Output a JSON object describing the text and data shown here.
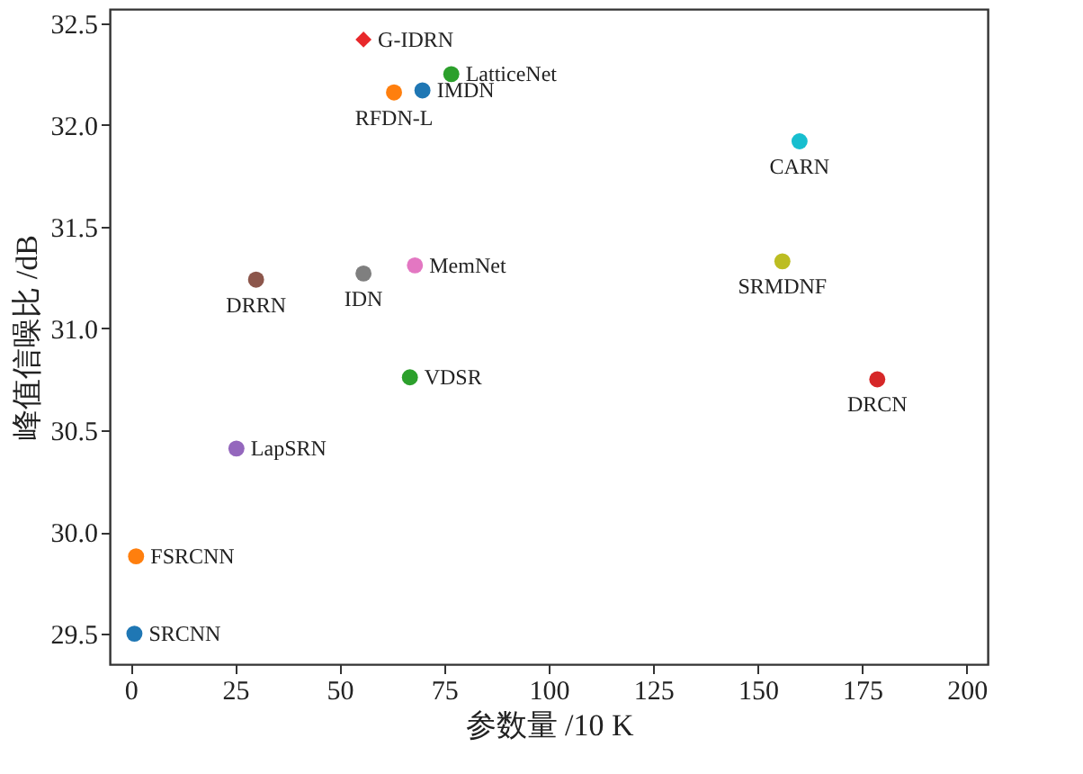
{
  "chart_data": {
    "type": "scatter",
    "xlabel": "参数量 /10 K",
    "ylabel": "峰值信噪比 /dB",
    "xlim": [
      -5,
      205
    ],
    "ylim": [
      29.35,
      32.57
    ],
    "xticks": [
      0,
      25,
      50,
      75,
      100,
      125,
      150,
      175,
      200
    ],
    "yticks": [
      29.5,
      {
        "value": 30,
        "label": "30.0"
      },
      30.5,
      {
        "value": 31,
        "label": "31.0"
      },
      31.5,
      {
        "value": 32,
        "label": "32.0"
      },
      32.5
    ],
    "grid": false,
    "marker": "circle",
    "series": [
      {
        "name": "SRCNN",
        "color": "#1f77b4",
        "x": [
          0.9
        ],
        "values": [
          29.5
        ]
      },
      {
        "name": "FSRCNN",
        "color": "#ff7f0e",
        "x": [
          1.3
        ],
        "values": [
          29.88
        ]
      },
      {
        "name": "VDSR",
        "color": "#2ca02c",
        "x": [
          66.8
        ],
        "values": [
          30.76
        ]
      },
      {
        "name": "DRCN",
        "color": "#d62728",
        "x": [
          178.6
        ],
        "values": [
          30.75
        ]
      },
      {
        "name": "LapSRN",
        "color": "#9467bd",
        "x": [
          25.3
        ],
        "values": [
          30.41
        ]
      },
      {
        "name": "DRRN",
        "color": "#8c564b",
        "x": [
          30
        ],
        "values": [
          31.24
        ]
      },
      {
        "name": "MemNet",
        "color": "#e377c2",
        "x": [
          68
        ],
        "values": [
          31.31
        ]
      },
      {
        "name": "IDN",
        "color": "#7f7f7f",
        "x": [
          55.7
        ],
        "values": [
          31.27
        ]
      },
      {
        "name": "SRMDNF",
        "color": "#bcbd22",
        "x": [
          155.9
        ],
        "values": [
          31.33
        ]
      },
      {
        "name": "CARN",
        "color": "#17becf",
        "x": [
          160
        ],
        "values": [
          31.92
        ]
      },
      {
        "name": "IMDN",
        "color": "#1f77b4",
        "x": [
          69.8
        ],
        "values": [
          32.17
        ]
      },
      {
        "name": "RFDN-L",
        "color": "#ff7f0e",
        "x": [
          63
        ],
        "values": [
          32.16
        ]
      },
      {
        "name": "LatticeNet",
        "color": "#2ca02c",
        "x": [
          76.7
        ],
        "values": [
          32.25
        ]
      },
      {
        "name": "G-IDRN",
        "color": "#e8282b",
        "x": [
          55.7
        ],
        "values": [
          32.42
        ],
        "marker": "diamond"
      }
    ]
  }
}
